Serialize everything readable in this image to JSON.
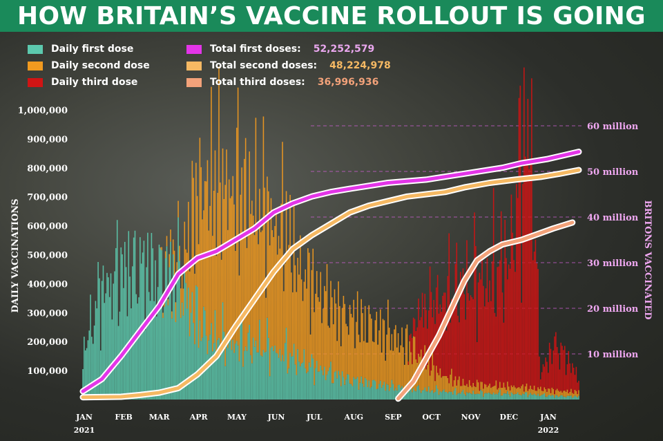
{
  "title": "HOW BRITAIN’S VACCINE ROLLOUT IS GOING",
  "legend": {
    "daily_first": {
      "label": "Daily first dose",
      "color": "#5cc9ae"
    },
    "daily_second": {
      "label": "Daily second dose",
      "color": "#f29a1f"
    },
    "daily_third": {
      "label": "Daily third dose",
      "color": "#d01414"
    },
    "total_first": {
      "label": "Total first doses:",
      "value": "52,252,579",
      "color": "#e335e8"
    },
    "total_second": {
      "label": "Total second doses:",
      "value": "48,224,978",
      "color": "#f6b963"
    },
    "total_third": {
      "label": "Total third doses:",
      "value": "36,996,936",
      "color": "#f3a27a"
    }
  },
  "chart_data": {
    "type": "bar",
    "ylabel": "DAILY VACCINATIONS",
    "y2label": "BRITONS VACCINATED",
    "ylim": [
      0,
      1000000
    ],
    "y2lim": [
      0,
      60000000
    ],
    "y_ticks": [
      "100,000",
      "200,000",
      "300,000",
      "400,000",
      "500,000",
      "600,000",
      "700,000",
      "800,000",
      "900,000",
      "1,000,000"
    ],
    "y2_ticks": [
      "10 million",
      "20 million",
      "30 million",
      "40 million",
      "50 million",
      "60 million"
    ],
    "x_ticks": [
      "JAN",
      "FEB",
      "MAR",
      "APR",
      "MAY",
      "JUN",
      "JUL",
      "AUG",
      "SEP",
      "OCT",
      "NOV",
      "DEC",
      "JAN"
    ],
    "x_years": [
      "2021",
      "2022"
    ],
    "x_range_days": [
      0,
      390
    ],
    "daily_first_profile": [
      [
        0,
        150000
      ],
      [
        14,
        360000
      ],
      [
        30,
        430000
      ],
      [
        45,
        440000
      ],
      [
        60,
        420000
      ],
      [
        75,
        410000
      ],
      [
        85,
        300000
      ],
      [
        100,
        210000
      ],
      [
        120,
        190000
      ],
      [
        140,
        180000
      ],
      [
        160,
        150000
      ],
      [
        180,
        110000
      ],
      [
        210,
        65000
      ],
      [
        240,
        45000
      ],
      [
        270,
        32000
      ],
      [
        300,
        22000
      ],
      [
        330,
        20000
      ],
      [
        350,
        18000
      ],
      [
        372,
        12000
      ],
      [
        390,
        10000
      ]
    ],
    "daily_second_profile": [
      [
        0,
        0
      ],
      [
        60,
        0
      ],
      [
        78,
        80000
      ],
      [
        90,
        420000
      ],
      [
        100,
        520000
      ],
      [
        120,
        520000
      ],
      [
        140,
        470000
      ],
      [
        150,
        430000
      ],
      [
        160,
        410000
      ],
      [
        170,
        310000
      ],
      [
        200,
        220000
      ],
      [
        240,
        180000
      ],
      [
        260,
        130000
      ],
      [
        280,
        60000
      ],
      [
        300,
        30000
      ],
      [
        330,
        25000
      ],
      [
        360,
        20000
      ],
      [
        390,
        15000
      ]
    ],
    "daily_third_profile": [
      [
        0,
        0
      ],
      [
        255,
        0
      ],
      [
        265,
        150000
      ],
      [
        280,
        250000
      ],
      [
        300,
        330000
      ],
      [
        320,
        360000
      ],
      [
        335,
        420000
      ],
      [
        345,
        750000
      ],
      [
        352,
        880000
      ],
      [
        360,
        50000
      ],
      [
        372,
        160000
      ],
      [
        385,
        80000
      ],
      [
        390,
        50000
      ]
    ],
    "cumulative_first": [
      [
        0,
        1.8
      ],
      [
        15,
        4.5
      ],
      [
        30,
        9.5
      ],
      [
        45,
        15.0
      ],
      [
        60,
        20.5
      ],
      [
        75,
        27.5
      ],
      [
        90,
        31.0
      ],
      [
        105,
        32.5
      ],
      [
        120,
        35.0
      ],
      [
        135,
        37.5
      ],
      [
        150,
        41.0
      ],
      [
        165,
        43.0
      ],
      [
        180,
        44.5
      ],
      [
        195,
        45.5
      ],
      [
        210,
        46.2
      ],
      [
        240,
        47.5
      ],
      [
        270,
        48.2
      ],
      [
        300,
        49.5
      ],
      [
        330,
        50.8
      ],
      [
        345,
        51.8
      ],
      [
        365,
        52.7
      ],
      [
        390,
        54.3
      ]
    ],
    "cumulative_second": [
      [
        0,
        0.5
      ],
      [
        30,
        0.6
      ],
      [
        45,
        1.0
      ],
      [
        60,
        1.5
      ],
      [
        75,
        2.5
      ],
      [
        90,
        5.5
      ],
      [
        105,
        9.5
      ],
      [
        120,
        16.0
      ],
      [
        135,
        22.0
      ],
      [
        150,
        28.0
      ],
      [
        165,
        33.0
      ],
      [
        180,
        36.0
      ],
      [
        195,
        38.5
      ],
      [
        210,
        41.0
      ],
      [
        225,
        42.5
      ],
      [
        240,
        43.5
      ],
      [
        255,
        44.5
      ],
      [
        270,
        45.0
      ],
      [
        285,
        45.5
      ],
      [
        300,
        46.5
      ],
      [
        320,
        47.5
      ],
      [
        340,
        48.2
      ],
      [
        360,
        48.8
      ],
      [
        375,
        49.5
      ],
      [
        390,
        50.3
      ]
    ],
    "cumulative_third": [
      [
        248,
        0.2
      ],
      [
        260,
        4.0
      ],
      [
        270,
        9.0
      ],
      [
        280,
        14.0
      ],
      [
        290,
        20.0
      ],
      [
        300,
        26.0
      ],
      [
        310,
        30.5
      ],
      [
        320,
        32.5
      ],
      [
        330,
        34.0
      ],
      [
        345,
        35.0
      ],
      [
        360,
        36.5
      ],
      [
        370,
        37.5
      ],
      [
        385,
        38.8
      ]
    ]
  }
}
